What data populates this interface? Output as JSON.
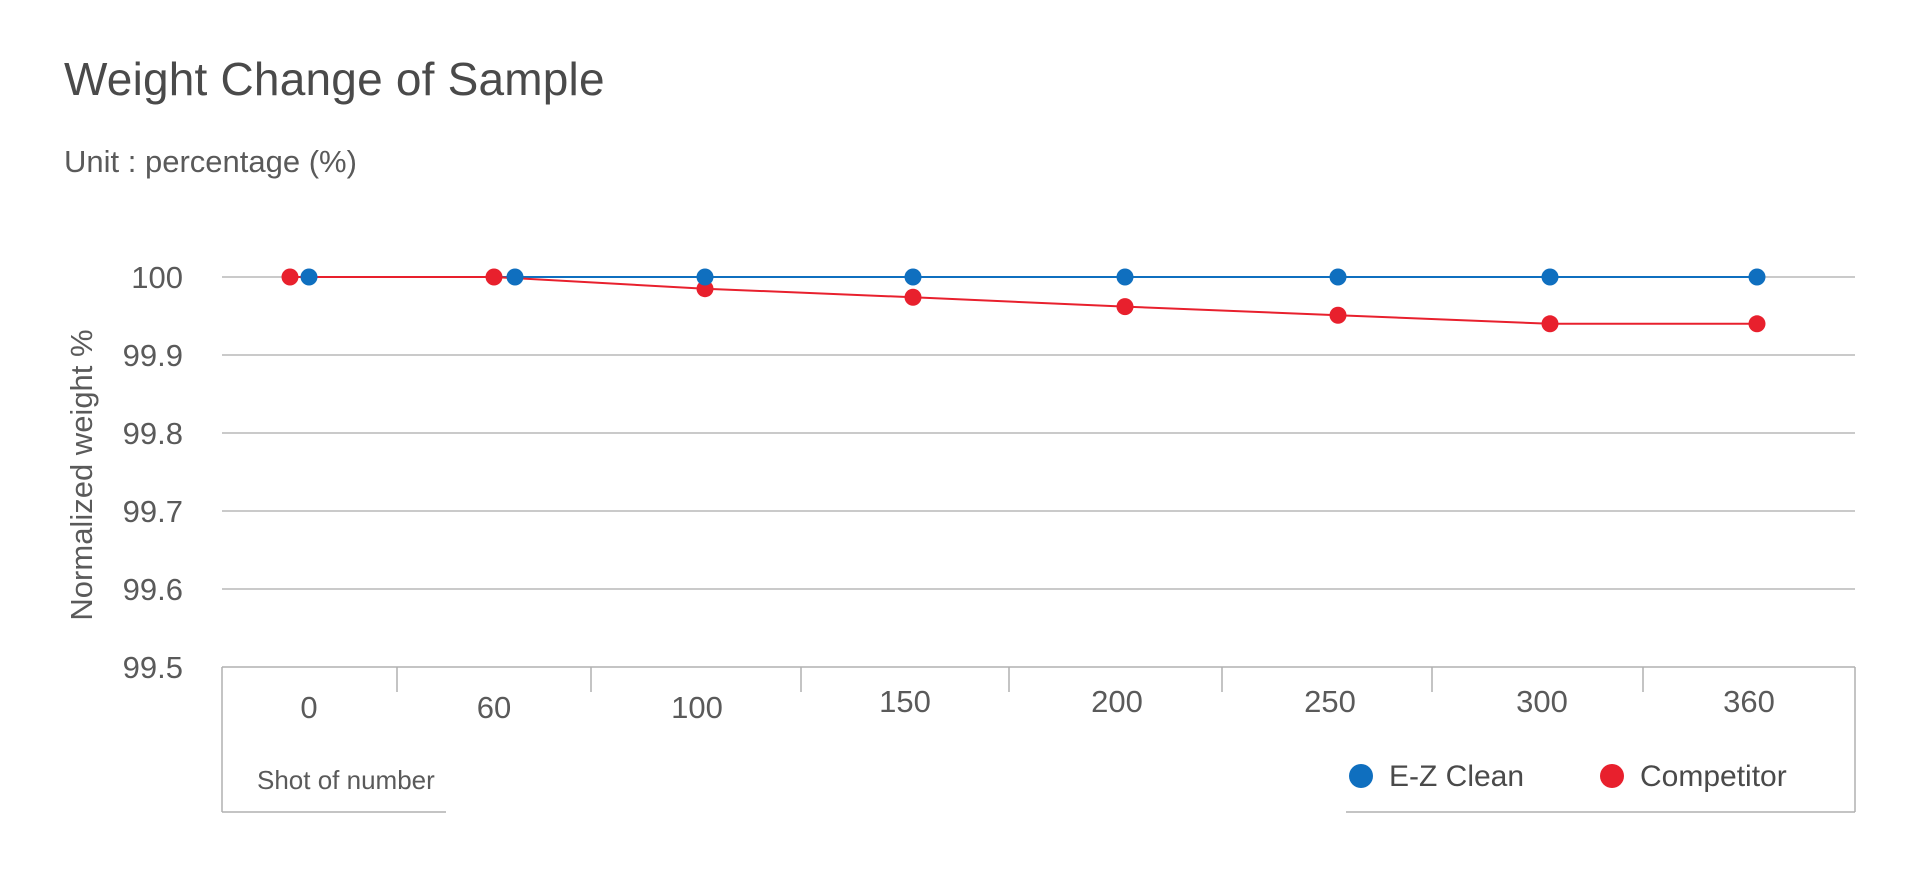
{
  "page": {
    "title": "Weight Change of Sample",
    "subtitle": "Unit : percentage (%)"
  },
  "chart_data": {
    "type": "line",
    "categories": [
      "0",
      "60",
      "100",
      "150",
      "200",
      "250",
      "300",
      "360"
    ],
    "xlabel": "Shot of number",
    "ylabel": "Normalized weight %",
    "ylim": [
      99.5,
      100
    ],
    "yticks": [
      "100",
      "99.9",
      "99.8",
      "99.7",
      "99.6",
      "99.5"
    ],
    "grid": true,
    "legend_position": "bottom-right",
    "series": [
      {
        "name": "E-Z Clean",
        "color": "#0f6fbf",
        "values": [
          100,
          100,
          100,
          100,
          100,
          100,
          100,
          100
        ]
      },
      {
        "name": "Competitor",
        "color": "#e8202d",
        "values": [
          100,
          100,
          99.985,
          99.974,
          99.962,
          99.951,
          99.94,
          99.94
        ]
      }
    ]
  }
}
